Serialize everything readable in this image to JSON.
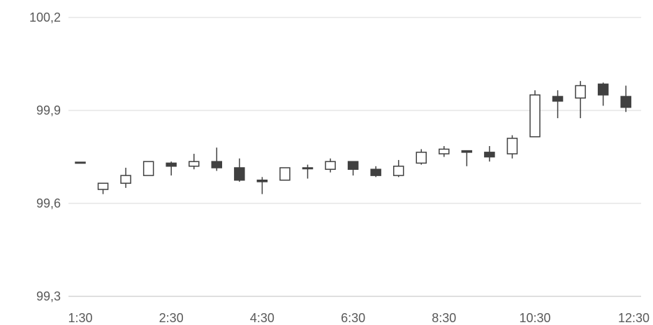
{
  "chart_data": {
    "type": "candlestick",
    "title": "",
    "xlabel": "",
    "ylabel": "",
    "ylim": [
      99.3,
      100.2
    ],
    "yticks": [
      "100,2",
      "99,9",
      "99,6",
      "99,3"
    ],
    "ytick_values": [
      100.2,
      99.9,
      99.6,
      99.3
    ],
    "xtick_labels": [
      "1:30",
      "2:30",
      "4:30",
      "6:30",
      "8:30",
      "10:30",
      "12:30"
    ],
    "xtick_index": [
      0,
      4,
      8,
      12,
      16,
      20,
      24
    ],
    "grid": true,
    "legend": "none",
    "colors": {
      "up": "#ffffff",
      "down": "#404040",
      "outline": "#404040",
      "grid": "#d9d9d9",
      "text": "#595959"
    },
    "candles": [
      {
        "o": 99.733,
        "h": 99.733,
        "l": 99.733,
        "c": 99.733
      },
      {
        "o": 99.645,
        "h": 99.665,
        "l": 99.63,
        "c": 99.665
      },
      {
        "o": 99.665,
        "h": 99.715,
        "l": 99.65,
        "c": 99.69
      },
      {
        "o": 99.69,
        "h": 99.735,
        "l": 99.69,
        "c": 99.735
      },
      {
        "o": 99.73,
        "h": 99.735,
        "l": 99.69,
        "c": 99.72
      },
      {
        "o": 99.72,
        "h": 99.76,
        "l": 99.71,
        "c": 99.735
      },
      {
        "o": 99.735,
        "h": 99.78,
        "l": 99.705,
        "c": 99.715
      },
      {
        "o": 99.715,
        "h": 99.745,
        "l": 99.67,
        "c": 99.675
      },
      {
        "o": 99.675,
        "h": 99.685,
        "l": 99.63,
        "c": 99.67
      },
      {
        "o": 99.675,
        "h": 99.715,
        "l": 99.675,
        "c": 99.715
      },
      {
        "o": 99.715,
        "h": 99.725,
        "l": 99.68,
        "c": 99.715
      },
      {
        "o": 99.71,
        "h": 99.745,
        "l": 99.7,
        "c": 99.735
      },
      {
        "o": 99.735,
        "h": 99.735,
        "l": 99.69,
        "c": 99.71
      },
      {
        "o": 99.71,
        "h": 99.72,
        "l": 99.685,
        "c": 99.69
      },
      {
        "o": 99.69,
        "h": 99.74,
        "l": 99.685,
        "c": 99.72
      },
      {
        "o": 99.73,
        "h": 99.775,
        "l": 99.725,
        "c": 99.765
      },
      {
        "o": 99.76,
        "h": 99.785,
        "l": 99.75,
        "c": 99.775
      },
      {
        "o": 99.77,
        "h": 99.77,
        "l": 99.72,
        "c": 99.765
      },
      {
        "o": 99.765,
        "h": 99.785,
        "l": 99.735,
        "c": 99.75
      },
      {
        "o": 99.76,
        "h": 99.82,
        "l": 99.745,
        "c": 99.81
      },
      {
        "o": 99.815,
        "h": 99.965,
        "l": 99.815,
        "c": 99.95
      },
      {
        "o": 99.945,
        "h": 99.965,
        "l": 99.875,
        "c": 99.93
      },
      {
        "o": 99.94,
        "h": 99.995,
        "l": 99.875,
        "c": 99.98
      },
      {
        "o": 99.985,
        "h": 99.99,
        "l": 99.915,
        "c": 99.95
      },
      {
        "o": 99.945,
        "h": 99.98,
        "l": 99.895,
        "c": 99.91
      }
    ]
  }
}
